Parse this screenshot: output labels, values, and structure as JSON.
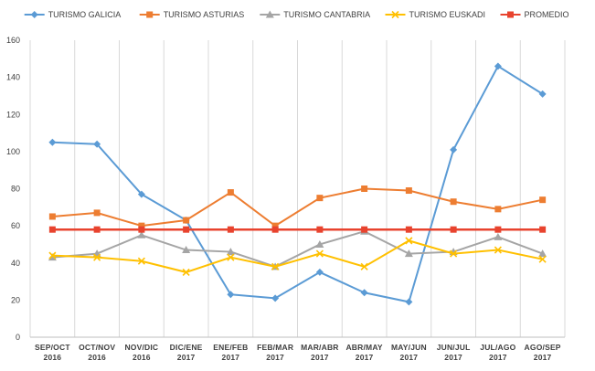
{
  "chart_data": {
    "type": "line",
    "title": "",
    "xlabel": "",
    "ylabel": "",
    "ylim": [
      0,
      160
    ],
    "yticks": [
      0,
      20,
      40,
      60,
      80,
      100,
      120,
      140,
      160
    ],
    "grid": "vertical",
    "legend_position": "top",
    "categories": [
      [
        "SEP/OCT",
        "2016"
      ],
      [
        "OCT/NOV",
        "2016"
      ],
      [
        "NOV/DIC",
        "2016"
      ],
      [
        "DIC/ENE",
        "2017"
      ],
      [
        "ENE/FEB",
        "2017"
      ],
      [
        "FEB/MAR",
        "2017"
      ],
      [
        "MAR/ABR",
        "2017"
      ],
      [
        "ABR/MAY",
        "2017"
      ],
      [
        "MAY/JUN",
        "2017"
      ],
      [
        "JUN/JUL",
        "2017"
      ],
      [
        "JUL/AGO",
        "2017"
      ],
      [
        "AGO/SEP",
        "2017"
      ]
    ],
    "series": [
      {
        "name": "TURISMO GALICIA",
        "color": "#5B9BD5",
        "marker": "diamond",
        "values": [
          105,
          104,
          77,
          63,
          23,
          21,
          35,
          24,
          19,
          101,
          146,
          131
        ]
      },
      {
        "name": "TURISMO ASTURIAS",
        "color": "#ED7D31",
        "marker": "square",
        "values": [
          65,
          67,
          60,
          63,
          78,
          60,
          75,
          80,
          79,
          73,
          69,
          74
        ]
      },
      {
        "name": "TURISMO CANTABRIA",
        "color": "#A5A5A5",
        "marker": "triangle",
        "values": [
          43,
          45,
          55,
          47,
          46,
          38,
          50,
          57,
          45,
          46,
          54,
          45
        ]
      },
      {
        "name": "TURISMO EUSKADI",
        "color": "#FFC000",
        "marker": "x",
        "values": [
          44,
          43,
          41,
          35,
          43,
          38,
          45,
          38,
          52,
          45,
          47,
          42
        ]
      },
      {
        "name": "PROMEDIO",
        "color": "#E8432E",
        "marker": "square",
        "values": [
          58,
          58,
          58,
          58,
          58,
          58,
          58,
          58,
          58,
          58,
          58,
          58
        ]
      }
    ]
  }
}
